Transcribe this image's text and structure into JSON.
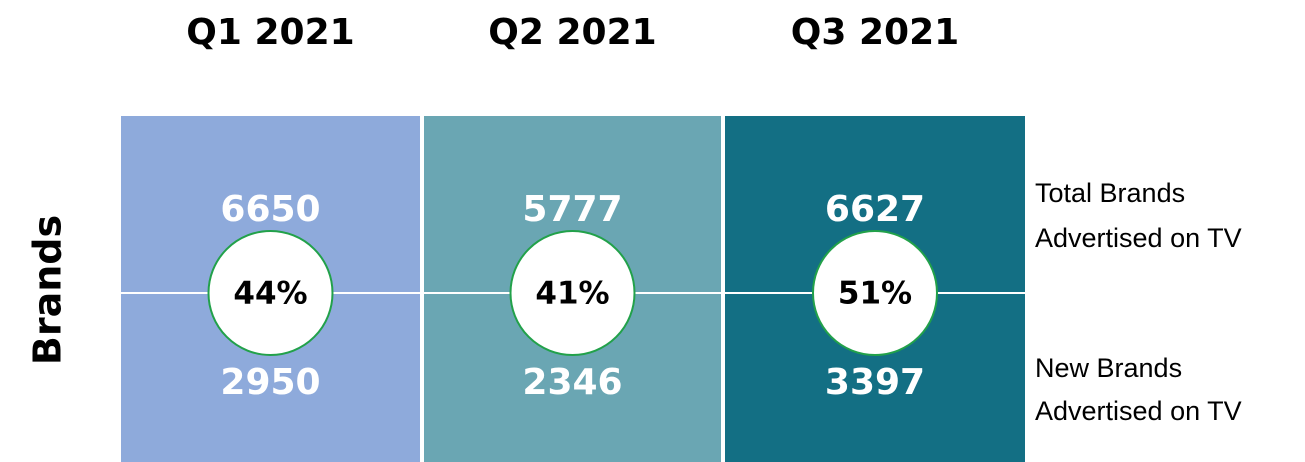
{
  "side_label": "Brands",
  "row_labels": [
    [
      "Total Brands",
      "Advertised on TV"
    ],
    [
      "New Brands",
      "Advertised on TV"
    ]
  ],
  "columns": [
    {
      "quarter": "Q1 2021",
      "total": "6650",
      "new": "2950",
      "share": "44%",
      "color": "#8eaadb"
    },
    {
      "quarter": "Q2 2021",
      "total": "5777",
      "new": "2346",
      "share": "41%",
      "color": "#6aa6b3"
    },
    {
      "quarter": "Q3 2021",
      "total": "6627",
      "new": "3397",
      "share": "51%",
      "color": "#136f84"
    }
  ]
}
